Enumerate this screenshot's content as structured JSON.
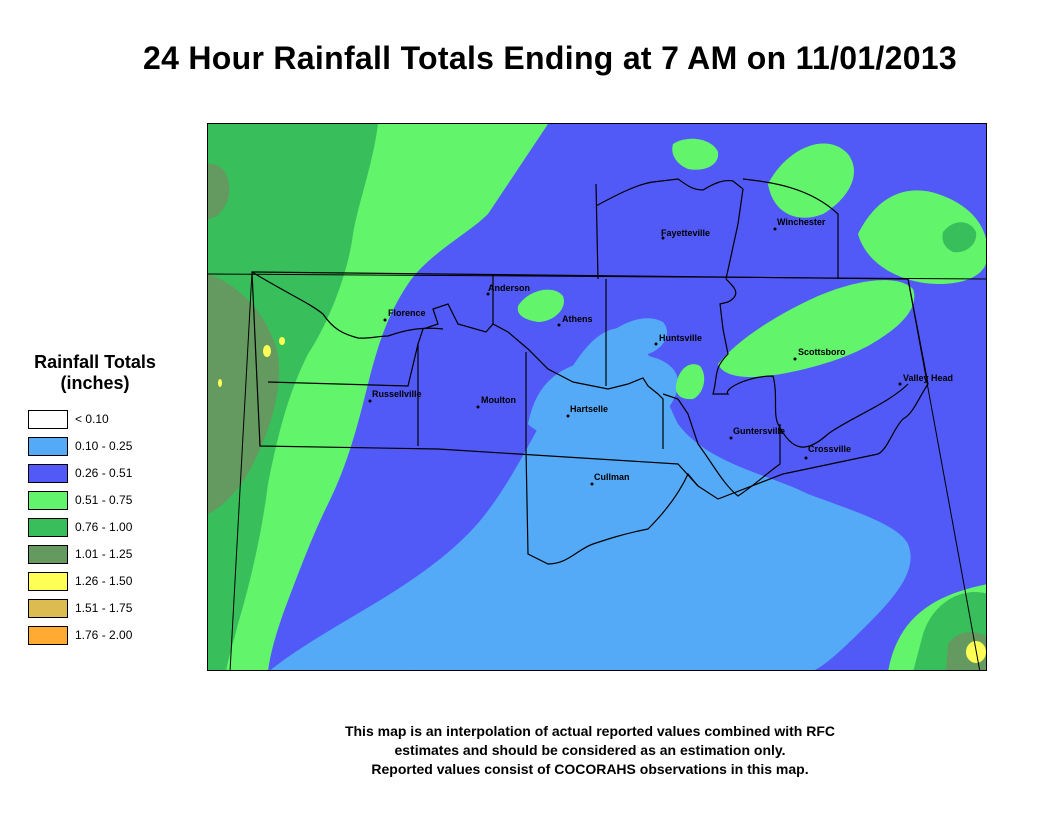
{
  "title": "24 Hour Rainfall Totals Ending at 7 AM on 11/01/2013",
  "legend": {
    "title_line1": "Rainfall Totals",
    "title_line2": "(inches)",
    "items": [
      {
        "label": "< 0.10",
        "color": "#ffffff"
      },
      {
        "label": "0.10 - 0.25",
        "color": "#55aaf8"
      },
      {
        "label": "0.26 - 0.51",
        "color": "#5159f7"
      },
      {
        "label": "0.51 - 0.75",
        "color": "#62f56c"
      },
      {
        "label": "0.76 - 1.00",
        "color": "#38bf5c"
      },
      {
        "label": "1.01 - 1.25",
        "color": "#649a60"
      },
      {
        "label": "1.26 - 1.50",
        "color": "#ffff55"
      },
      {
        "label": "1.51 - 1.75",
        "color": "#dcbc50"
      },
      {
        "label": "1.76 - 2.00",
        "color": "#ffaa33"
      }
    ]
  },
  "cities": {
    "fayetteville": "Fayetteville",
    "winchester": "Winchester",
    "anderson": "Anderson",
    "florence": "Florence",
    "athens": "Athens",
    "huntsville": "Huntsville",
    "scottsboro": "Scottsboro",
    "valley_head": "Valley Head",
    "russellville": "Russellville",
    "moulton": "Moulton",
    "hartselle": "Hartselle",
    "guntersville": "Guntersville",
    "crossville": "Crossville",
    "cullman": "Cullman"
  },
  "footnote": {
    "line1": "This map is an interpolation of actual reported values combined with RFC",
    "line2": "estimates and should be considered as an estimation only.",
    "line3": "Reported values consist of COCORAHS observations in this map."
  }
}
